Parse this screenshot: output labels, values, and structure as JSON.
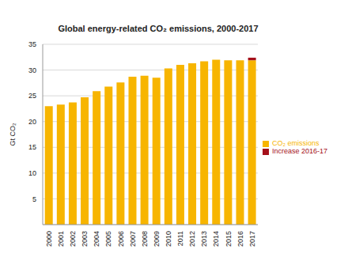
{
  "chart_data": {
    "type": "bar",
    "title": "Global energy-related CO₂ emissions, 2000-2017",
    "y_label": "Gt CO₂",
    "categories": [
      "2000",
      "2001",
      "2002",
      "2003",
      "2004",
      "2005",
      "2006",
      "2007",
      "2008",
      "2009",
      "2010",
      "2011",
      "2012",
      "2013",
      "2014",
      "2015",
      "2016",
      "2017"
    ],
    "series": [
      {
        "name": "CO₂ emissions",
        "color": "#f7b500",
        "values": [
          23.0,
          23.3,
          23.7,
          24.7,
          25.9,
          26.8,
          27.6,
          28.7,
          28.9,
          28.5,
          30.3,
          31.0,
          31.3,
          31.7,
          32.0,
          31.9,
          31.9,
          31.9
        ]
      },
      {
        "name": "Increase 2016-17",
        "color": "#a5101a",
        "values": [
          null,
          null,
          null,
          null,
          null,
          null,
          null,
          null,
          null,
          null,
          null,
          null,
          null,
          null,
          null,
          null,
          null,
          0.5
        ]
      }
    ],
    "stacked": true,
    "ylim": [
      0,
      35
    ],
    "yticks": [
      5,
      10,
      15,
      20,
      25,
      30,
      35
    ],
    "grid": true,
    "legend": "right"
  }
}
